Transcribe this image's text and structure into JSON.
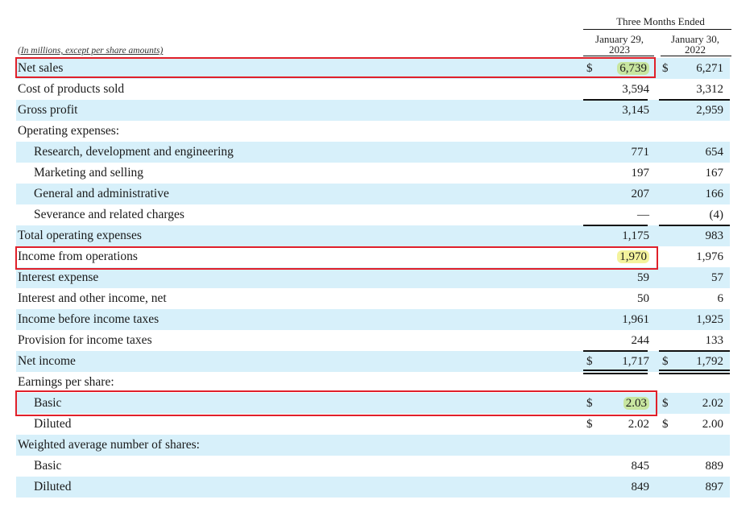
{
  "header": {
    "period_title": "Three Months Ended",
    "col1_line1": "January 29,",
    "col1_line2": "2023",
    "col2_line1": "January 30,",
    "col2_line2": "2022",
    "units_note": "(In millions, except per share amounts)"
  },
  "rows": [
    {
      "label": "Net sales",
      "indent": false,
      "shade": true,
      "dollar1": "$",
      "v1": "6,739",
      "dollar2": "$",
      "v2": "6,271",
      "hl": "green"
    },
    {
      "label": "Cost of products sold",
      "indent": false,
      "shade": false,
      "dollar1": "",
      "v1": "3,594",
      "dollar2": "",
      "v2": "3,312"
    },
    {
      "label": "Gross profit",
      "indent": false,
      "shade": true,
      "dollar1": "",
      "v1": "3,145",
      "dollar2": "",
      "v2": "2,959"
    },
    {
      "label": "Operating expenses:",
      "indent": false,
      "shade": false,
      "dollar1": "",
      "v1": "",
      "dollar2": "",
      "v2": ""
    },
    {
      "label": "Research, development and engineering",
      "indent": true,
      "shade": true,
      "dollar1": "",
      "v1": "771",
      "dollar2": "",
      "v2": "654"
    },
    {
      "label": "Marketing and selling",
      "indent": true,
      "shade": false,
      "dollar1": "",
      "v1": "197",
      "dollar2": "",
      "v2": "167"
    },
    {
      "label": "General and administrative",
      "indent": true,
      "shade": true,
      "dollar1": "",
      "v1": "207",
      "dollar2": "",
      "v2": "166"
    },
    {
      "label": "Severance and related charges",
      "indent": true,
      "shade": false,
      "dollar1": "",
      "v1": "—",
      "dollar2": "",
      "v2": "(4)"
    },
    {
      "label": "Total operating expenses",
      "indent": false,
      "shade": true,
      "dollar1": "",
      "v1": "1,175",
      "dollar2": "",
      "v2": "983"
    },
    {
      "label": "Income from operations",
      "indent": false,
      "shade": false,
      "dollar1": "",
      "v1": "1,970",
      "dollar2": "",
      "v2": "1,976",
      "hl": "yellow"
    },
    {
      "label": "Interest expense",
      "indent": false,
      "shade": true,
      "dollar1": "",
      "v1": "59",
      "dollar2": "",
      "v2": "57"
    },
    {
      "label": "Interest and other income, net",
      "indent": false,
      "shade": false,
      "dollar1": "",
      "v1": "50",
      "dollar2": "",
      "v2": "6"
    },
    {
      "label": "Income before income taxes",
      "indent": false,
      "shade": true,
      "dollar1": "",
      "v1": "1,961",
      "dollar2": "",
      "v2": "1,925"
    },
    {
      "label": "Provision for income taxes",
      "indent": false,
      "shade": false,
      "dollar1": "",
      "v1": "244",
      "dollar2": "",
      "v2": "133"
    },
    {
      "label": "Net income",
      "indent": false,
      "shade": true,
      "dollar1": "$",
      "v1": "1,717",
      "dollar2": "$",
      "v2": "1,792"
    },
    {
      "label": "Earnings per share:",
      "indent": false,
      "shade": false,
      "dollar1": "",
      "v1": "",
      "dollar2": "",
      "v2": ""
    },
    {
      "label": "Basic",
      "indent": true,
      "shade": true,
      "dollar1": "$",
      "v1": "2.03",
      "dollar2": "$",
      "v2": "2.02",
      "hl": "green"
    },
    {
      "label": "Diluted",
      "indent": true,
      "shade": false,
      "dollar1": "$",
      "v1": "2.02",
      "dollar2": "$",
      "v2": "2.00"
    },
    {
      "label": "Weighted average number of shares:",
      "indent": false,
      "shade": true,
      "dollar1": "",
      "v1": "",
      "dollar2": "",
      "v2": ""
    },
    {
      "label": "Basic",
      "indent": true,
      "shade": false,
      "dollar1": "",
      "v1": "845",
      "dollar2": "",
      "v2": "889"
    },
    {
      "label": "Diluted",
      "indent": true,
      "shade": true,
      "dollar1": "",
      "v1": "849",
      "dollar2": "",
      "v2": "897"
    }
  ],
  "colors": {
    "row_shade": "#d7f0fa",
    "highlight_box": "#e0202a",
    "highlight_yellow": "#f4f39d",
    "highlight_green": "#c8e6a0"
  }
}
